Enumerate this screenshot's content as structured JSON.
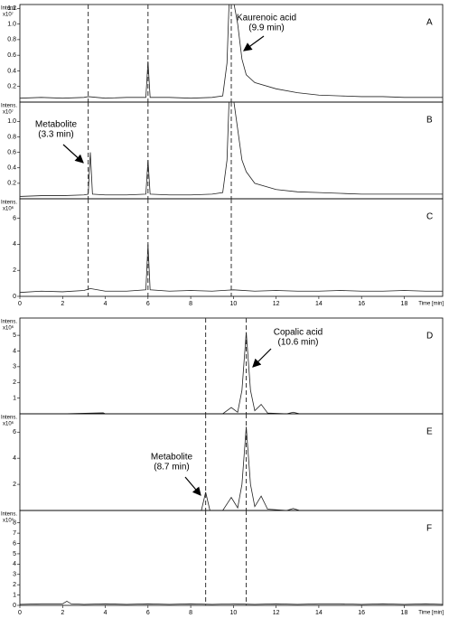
{
  "chart_data": [
    {
      "type": "line",
      "label": "A",
      "y_label": "Intens.",
      "y_unit": "x10⁷",
      "annotation": [
        "Kaurenoic acid",
        "(9.9 min)"
      ],
      "x": [
        0,
        1,
        2,
        3,
        3.2,
        4,
        5,
        5.9,
        6.0,
        6.1,
        7,
        8,
        9,
        9.5,
        9.7,
        9.8,
        10.0,
        10.2,
        10.4,
        10.6,
        11,
        12,
        13,
        14,
        15,
        16,
        17,
        18,
        19,
        19.8
      ],
      "values": [
        0.05,
        0.06,
        0.05,
        0.06,
        0.07,
        0.05,
        0.06,
        0.06,
        0.52,
        0.06,
        0.06,
        0.05,
        0.06,
        0.08,
        0.5,
        1.3,
        1.3,
        1.0,
        0.55,
        0.35,
        0.25,
        0.17,
        0.12,
        0.09,
        0.08,
        0.07,
        0.07,
        0.06,
        0.06,
        0.06
      ],
      "ylim": [
        0,
        1.25
      ],
      "yticks": [
        0.2,
        0.4,
        0.6,
        0.8,
        {
          "value": 1,
          "label": "1.0"
        },
        1.2
      ],
      "vlines": [
        3.2,
        6.0,
        9.9
      ]
    },
    {
      "type": "line",
      "label": "B",
      "y_label": "Intens.",
      "y_unit": "x10⁷",
      "annotation": [
        "Metabolite",
        "(3.3 min)"
      ],
      "x": [
        0,
        1,
        2,
        3,
        3.2,
        3.3,
        3.4,
        4,
        5,
        5.9,
        6.0,
        6.1,
        7,
        8,
        9,
        9.5,
        9.7,
        9.8,
        10.0,
        10.2,
        10.4,
        10.6,
        11,
        12,
        13,
        14,
        15,
        16,
        17,
        18,
        19,
        19.8
      ],
      "values": [
        0.03,
        0.04,
        0.04,
        0.05,
        0.06,
        0.6,
        0.06,
        0.05,
        0.05,
        0.06,
        0.5,
        0.06,
        0.05,
        0.05,
        0.06,
        0.08,
        0.5,
        1.3,
        1.3,
        0.9,
        0.5,
        0.35,
        0.2,
        0.12,
        0.09,
        0.08,
        0.07,
        0.06,
        0.06,
        0.06,
        0.06,
        0.06
      ],
      "ylim": [
        0,
        1.25
      ],
      "yticks": [
        0.2,
        0.4,
        0.6,
        0.8,
        {
          "value": 1,
          "label": "1.0"
        }
      ],
      "vlines": [
        3.2,
        6.0,
        9.9
      ]
    },
    {
      "type": "line",
      "label": "C",
      "y_label": "Intens.",
      "y_unit": "x10⁶",
      "x": [
        0,
        1,
        2,
        3,
        3.3,
        4,
        5,
        5.9,
        6.0,
        6.1,
        7,
        8,
        9,
        10,
        11,
        12,
        13,
        14,
        15,
        16,
        17,
        18,
        19,
        19.8
      ],
      "values": [
        0.3,
        0.4,
        0.35,
        0.45,
        0.6,
        0.4,
        0.4,
        0.5,
        4.0,
        0.5,
        0.4,
        0.45,
        0.4,
        0.5,
        0.4,
        0.45,
        0.4,
        0.4,
        0.45,
        0.4,
        0.4,
        0.45,
        0.4,
        0.4
      ],
      "ylim": [
        0,
        7.5
      ],
      "yticks": [
        0,
        2,
        4,
        6
      ],
      "vlines": [
        3.2,
        6.0,
        9.9
      ],
      "xlim": [
        0,
        19.8
      ],
      "xticks": [
        0,
        2,
        4,
        6,
        8,
        10,
        12,
        14,
        16,
        18
      ],
      "x_label": "Time [min]"
    },
    {
      "type": "line",
      "label": "D",
      "y_label": "Intens.",
      "y_unit": "x10⁶",
      "annotation": [
        "Copalic acid",
        "(10.6 min)"
      ],
      "x": [
        0,
        2,
        3.9,
        4,
        6,
        8,
        9.5,
        9.9,
        10.2,
        10.4,
        10.6,
        10.8,
        11.0,
        11.3,
        11.6,
        12.5,
        12.8,
        13.1,
        14,
        16,
        18,
        19.8
      ],
      "values": [
        0,
        0,
        0.06,
        0,
        0,
        0,
        0,
        0.4,
        0.1,
        1.5,
        5.2,
        1.5,
        0.2,
        0.6,
        0.05,
        0,
        0.1,
        0,
        0,
        0,
        0,
        0
      ],
      "ylim": [
        0,
        6.1
      ],
      "yticks": [
        1,
        2,
        3,
        4,
        5
      ],
      "vlines": [
        8.7,
        10.6
      ]
    },
    {
      "type": "line",
      "label": "E",
      "y_label": "Intens.",
      "y_unit": "x10⁶",
      "annotation": [
        "Metabolite",
        "(8.7 min)"
      ],
      "x": [
        0,
        2,
        4,
        6,
        8,
        8.5,
        8.7,
        8.9,
        9.5,
        9.9,
        10.2,
        10.4,
        10.6,
        10.8,
        11.0,
        11.3,
        11.6,
        12.5,
        12.8,
        13.1,
        14,
        16,
        18,
        19.8
      ],
      "values": [
        0,
        0,
        0,
        0,
        0,
        0,
        1.4,
        0,
        0,
        1.0,
        0.2,
        2,
        6.4,
        2,
        0.3,
        1.1,
        0.1,
        0,
        0.15,
        0,
        0,
        0,
        0,
        0
      ],
      "ylim": [
        0,
        7.4
      ],
      "yticks": [
        2,
        4,
        6
      ],
      "vlines": [
        8.7,
        10.6
      ]
    },
    {
      "type": "line",
      "label": "F",
      "y_label": "Intens.",
      "y_unit": "x10⁵",
      "x": [
        0,
        1,
        2,
        2.2,
        2.4,
        3,
        4,
        5,
        6,
        7,
        8,
        9,
        10,
        11,
        12,
        13,
        14,
        15,
        16,
        17,
        18,
        19,
        19.8
      ],
      "values": [
        0.1,
        0.15,
        0.15,
        0.4,
        0.15,
        0.1,
        0.15,
        0.1,
        0.15,
        0.1,
        0.15,
        0.1,
        0.15,
        0.1,
        0.15,
        0.1,
        0.15,
        0.15,
        0.1,
        0.15,
        0.1,
        0.15,
        0.1
      ],
      "ylim": [
        0,
        9.2
      ],
      "yticks": [
        0,
        1,
        2,
        3,
        4,
        5,
        6,
        7,
        8
      ],
      "vlines": [
        8.7,
        10.6
      ],
      "xlim": [
        0,
        19.8
      ],
      "xticks": [
        0,
        2,
        4,
        6,
        8,
        10,
        12,
        14,
        16,
        18
      ],
      "x_label": "Time [min]"
    }
  ]
}
